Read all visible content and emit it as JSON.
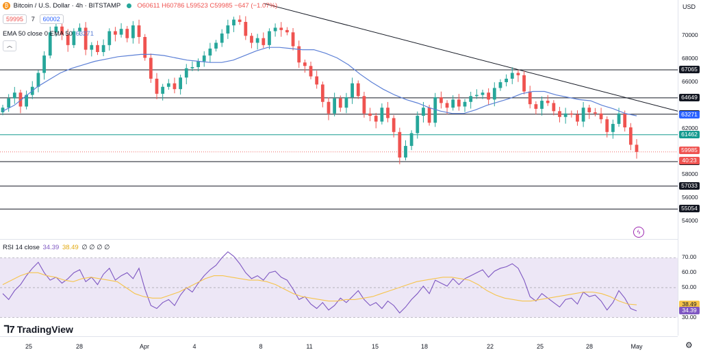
{
  "header": {
    "symbol_title": "Bitcoin / U.S. Dollar · 4h · BITSTAMP",
    "ohlc": "O60611 H60786 L59523 C59985 −647 (−1.07%)",
    "bid": "59995",
    "spread": "7",
    "ask": "60002",
    "currency": "USD"
  },
  "indicators": {
    "ema_label": "EMA 50 close 0 EMA 50",
    "ema_value": "63271",
    "rsi_label": "RSI 14 close",
    "rsi_value": "34.39",
    "rsi_ma_value": "38.49",
    "rsi_extra": "∅ ∅ ∅ ∅"
  },
  "colors": {
    "up": "#26a69a",
    "down": "#ef5350",
    "ema": "#5b7fd6",
    "rsi": "#7e57c2",
    "rsi_ma": "#f6c44c",
    "rsi_band": "#ede7f6",
    "level_black": "#131722",
    "level_teal": "#139a8f",
    "tag_red": "#ef5350",
    "tag_blue": "#2962ff",
    "tag_teal": "#139a8f"
  },
  "branding": {
    "logo_text": "TradingView"
  },
  "time_axis": [
    "25",
    "28",
    "Apr",
    "4",
    "8",
    "11",
    "15",
    "18",
    "22",
    "25",
    "28",
    "May"
  ],
  "chart_data": {
    "type": "candlestick",
    "title": "Bitcoin / U.S. Dollar · 4h · BITSTAMP",
    "price_axis": {
      "ticks": [
        "70000",
        "68000",
        "66000",
        "62000",
        "60000",
        "58000",
        "56000",
        "54000"
      ],
      "range": [
        53000,
        72500
      ],
      "levels": [
        {
          "value": 67065,
          "label": "67065",
          "color": "level_black"
        },
        {
          "value": 64649,
          "label": "64649",
          "color": "level_black"
        },
        {
          "value": 63240,
          "label": "63240",
          "color": "level_black"
        },
        {
          "value": 61462,
          "label": "61462",
          "color": "level_teal"
        },
        {
          "value": 59147,
          "label": "59147",
          "color": "level_black"
        },
        {
          "value": 57033,
          "label": "57033",
          "color": "level_black"
        },
        {
          "value": 55054,
          "label": "55054",
          "color": "level_black"
        }
      ],
      "current_price": {
        "value": 59985,
        "label": "59985",
        "countdown": "40:23"
      },
      "ema_tag": {
        "value": 63271,
        "label": "63271"
      }
    },
    "trendline": {
      "from_price": 72800,
      "to_price": 63500
    },
    "ema_path": [
      63500,
      64000,
      64800,
      65600,
      66200,
      66800,
      67200,
      67500,
      67800,
      68000,
      68200,
      68300,
      68400,
      68400,
      68300,
      68100,
      67900,
      67800,
      67700,
      67700,
      67900,
      68300,
      68700,
      69000,
      69000,
      68900,
      68800,
      68800,
      68500,
      68100,
      67500,
      66700,
      66000,
      65400,
      64900,
      64500,
      64200,
      63800,
      63500,
      63300,
      63300,
      63600,
      64000,
      64300,
      64600,
      65000,
      65200,
      65200,
      64900,
      64700,
      64500,
      64400,
      64000,
      63700,
      63300,
      63100
    ],
    "candle_closes": [
      63800,
      64600,
      65100,
      63900,
      64900,
      65600,
      66800,
      68300,
      70300,
      70800,
      70100,
      69200,
      70400,
      70700,
      68800,
      69200,
      68600,
      69200,
      70400,
      70100,
      70600,
      69800,
      70900,
      69900,
      68100,
      66300,
      65000,
      65600,
      65900,
      65400,
      66400,
      67200,
      67300,
      67800,
      68300,
      68900,
      69400,
      70200,
      70900,
      71400,
      71200,
      70000,
      69400,
      69800,
      69200,
      70400,
      70700,
      70500,
      70300,
      69100,
      67700,
      67400,
      66500,
      65800,
      64300,
      63300,
      64600,
      63800,
      64700,
      65900,
      64800,
      63300,
      63100,
      62600,
      63800,
      62900,
      61700,
      59500,
      60500,
      61600,
      63100,
      63800,
      62500,
      64700,
      64200,
      63800,
      64500,
      63900,
      64300,
      64800,
      64900,
      65100,
      64500,
      65500,
      66000,
      66300,
      66800,
      66600,
      65200,
      64100,
      63700,
      64400,
      64200,
      63500,
      63000,
      63300,
      63200,
      62600,
      63800,
      63400,
      63300,
      62800,
      61700,
      62400,
      63300,
      62100,
      60600,
      59985
    ],
    "rsi_path": [
      46,
      42,
      48,
      52,
      58,
      63,
      67,
      60,
      55,
      57,
      53,
      56,
      60,
      62,
      54,
      57,
      52,
      59,
      63,
      55,
      58,
      60,
      56,
      63,
      49,
      38,
      36,
      40,
      42,
      38,
      45,
      50,
      47,
      53,
      58,
      62,
      65,
      70,
      74,
      71,
      66,
      60,
      56,
      58,
      55,
      60,
      61,
      57,
      55,
      49,
      42,
      44,
      39,
      36,
      40,
      35,
      38,
      43,
      40,
      44,
      48,
      42,
      38,
      40,
      36,
      41,
      38,
      33,
      37,
      42,
      46,
      51,
      46,
      55,
      53,
      51,
      56,
      52,
      56,
      58,
      60,
      62,
      57,
      61,
      63,
      64,
      66,
      63,
      55,
      44,
      41,
      46,
      43,
      40,
      37,
      42,
      43,
      39,
      47,
      44,
      45,
      41,
      35,
      40,
      48,
      43,
      36,
      34.39
    ],
    "rsi_ma_path": [
      52,
      55,
      58,
      60,
      60,
      58,
      57,
      55,
      54,
      56,
      57,
      56,
      55,
      54,
      50,
      46,
      44,
      43,
      43,
      45,
      47,
      50,
      53,
      56,
      58,
      58,
      57,
      56,
      55,
      55,
      54,
      52,
      49,
      46,
      44,
      43,
      42,
      41,
      41,
      42,
      42,
      43,
      44,
      46,
      48,
      50,
      52,
      54,
      55,
      56,
      57,
      57,
      56,
      55,
      52,
      48,
      45,
      43,
      42,
      41,
      41,
      42,
      43,
      44,
      45,
      46,
      47,
      47,
      46,
      44,
      41,
      39,
      38.49
    ],
    "rsi_axis": {
      "ticks": [
        "70.00",
        "60.00",
        "50.00",
        "30.00"
      ],
      "range": [
        22,
        78
      ],
      "band": [
        30,
        70
      ]
    }
  }
}
